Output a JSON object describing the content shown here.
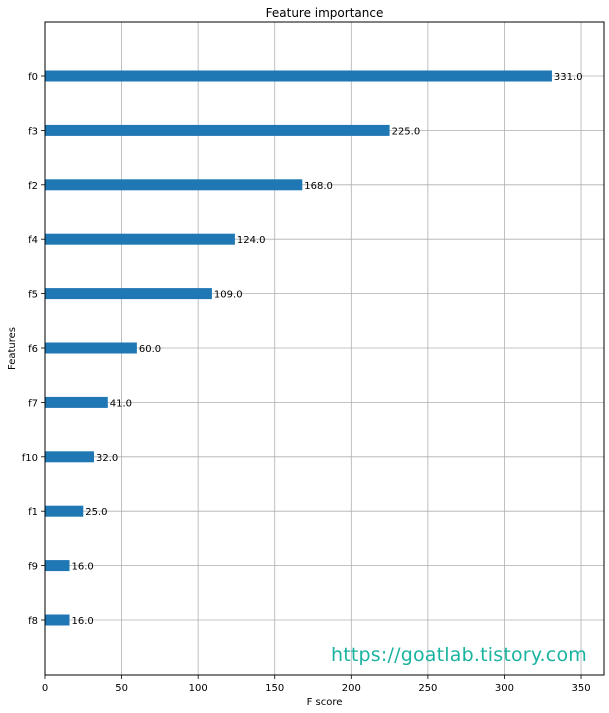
{
  "chart_data": {
    "type": "bar",
    "orientation": "horizontal",
    "title": "Feature importance",
    "xlabel": "F score",
    "ylabel": "Features",
    "xlim": [
      0,
      365
    ],
    "xticks": [
      0,
      50,
      100,
      150,
      200,
      250,
      300,
      350
    ],
    "grid": true,
    "categories": [
      "f0",
      "f3",
      "f2",
      "f4",
      "f5",
      "f6",
      "f7",
      "f10",
      "f1",
      "f9",
      "f8"
    ],
    "values": [
      331,
      225,
      168,
      124,
      109,
      60,
      41,
      32,
      25,
      16,
      16
    ],
    "data_labels": [
      "331.0",
      "225.0",
      "168.0",
      "124.0",
      "109.0",
      "60.0",
      "41.0",
      "32.0",
      "25.0",
      "16.0",
      "16.0"
    ],
    "bar_color": "#1f77b4"
  },
  "watermark": "https://goatlab.tistory.com"
}
